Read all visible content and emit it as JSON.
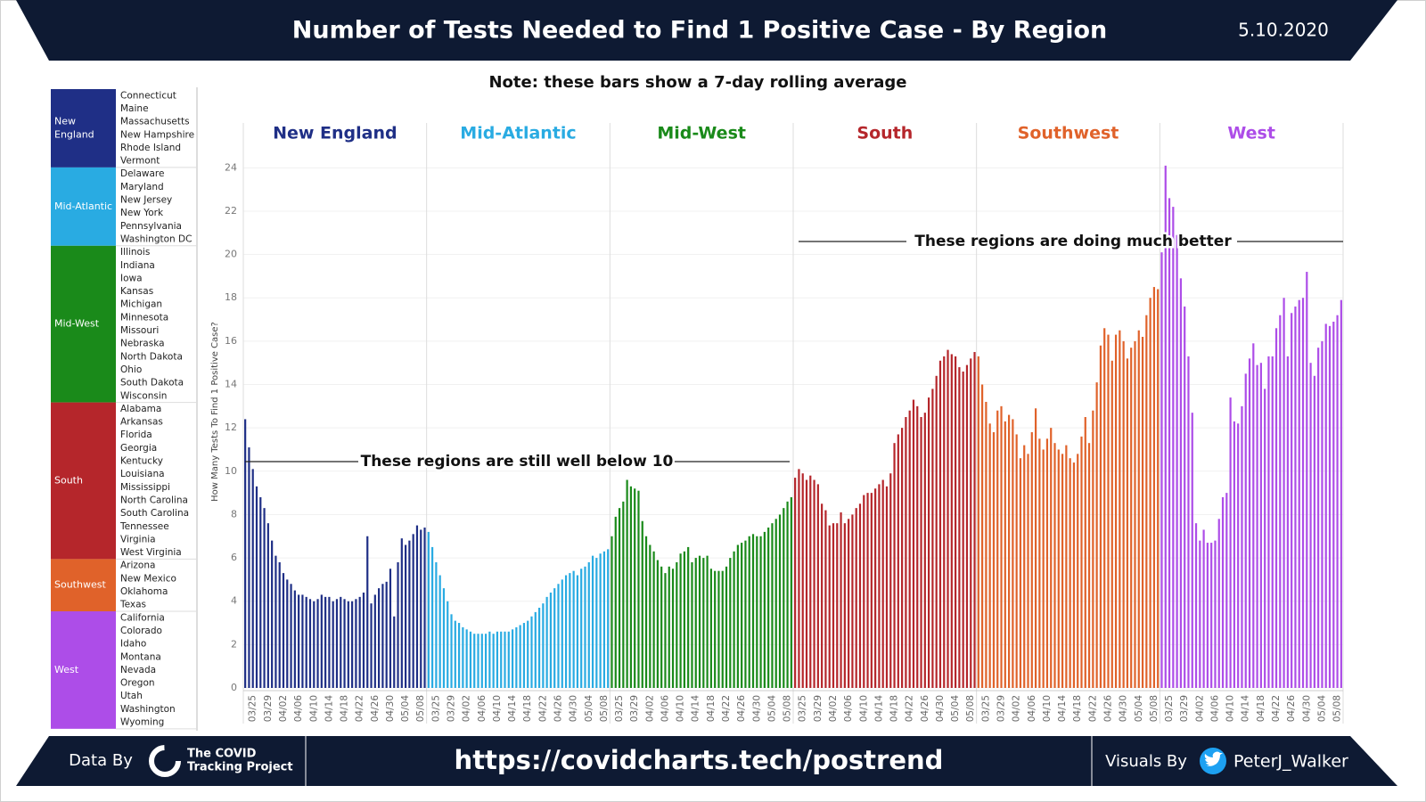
{
  "chart_data": {
    "type": "bar",
    "title": "Number of Tests Needed to Find 1 Positive Case - By Region",
    "date": "5.10.2020",
    "note": "Note: these bars show a 7-day rolling average",
    "y_label": "How Many Tests To Find 1 Positive Case?",
    "ylim": [
      0,
      25
    ],
    "yticks": [
      0,
      2,
      4,
      6,
      8,
      10,
      12,
      14,
      16,
      18,
      20,
      22,
      24
    ],
    "grid": true,
    "categories": [
      null,
      null,
      "03/25",
      null,
      null,
      null,
      "03/29",
      null,
      null,
      null,
      "04/02",
      null,
      null,
      null,
      "04/06",
      null,
      null,
      null,
      "04/10",
      null,
      null,
      null,
      "04/14",
      null,
      null,
      null,
      "04/18",
      null,
      null,
      null,
      "04/22",
      null,
      null,
      null,
      "04/26",
      null,
      null,
      null,
      "04/30",
      null,
      null,
      null,
      "05/04",
      null,
      null,
      null,
      "05/08",
      null
    ],
    "series": [
      {
        "name": "New England",
        "color": "#1f2f86",
        "values": [
          12.4,
          11.1,
          10.1,
          9.3,
          8.8,
          8.3,
          7.6,
          6.8,
          6.1,
          5.8,
          5.3,
          5.0,
          4.8,
          4.5,
          4.3,
          4.3,
          4.2,
          4.1,
          4.0,
          4.1,
          4.3,
          4.2,
          4.2,
          4.0,
          4.1,
          4.2,
          4.1,
          4.0,
          4.0,
          4.1,
          4.2,
          4.4,
          7.0,
          3.9,
          4.3,
          4.6,
          4.8,
          4.9,
          5.5,
          3.3,
          5.8,
          6.9,
          6.6,
          6.8,
          7.1,
          7.5,
          7.3,
          7.4
        ]
      },
      {
        "name": "Mid-Atlantic",
        "color": "#29abe2",
        "values": [
          7.2,
          6.5,
          5.8,
          5.2,
          4.6,
          4.0,
          3.4,
          3.1,
          3.0,
          2.8,
          2.7,
          2.6,
          2.5,
          2.5,
          2.5,
          2.5,
          2.6,
          2.5,
          2.6,
          2.6,
          2.6,
          2.6,
          2.7,
          2.8,
          2.9,
          3.0,
          3.1,
          3.3,
          3.5,
          3.7,
          3.9,
          4.2,
          4.4,
          4.6,
          4.8,
          5.0,
          5.2,
          5.3,
          5.4,
          5.2,
          5.5,
          5.6,
          5.8,
          6.1,
          6.0,
          6.2,
          6.3,
          6.4
        ]
      },
      {
        "name": "Mid-West",
        "color": "#1a8a1a",
        "values": [
          7.0,
          7.9,
          8.3,
          8.6,
          9.6,
          9.3,
          9.2,
          9.1,
          7.7,
          7.0,
          6.6,
          6.3,
          5.9,
          5.6,
          5.3,
          5.6,
          5.5,
          5.8,
          6.2,
          6.3,
          6.5,
          5.8,
          6.0,
          6.1,
          6.0,
          6.1,
          5.5,
          5.4,
          5.4,
          5.4,
          5.6,
          6.0,
          6.3,
          6.6,
          6.7,
          6.8,
          7.0,
          7.1,
          7.0,
          7.0,
          7.2,
          7.4,
          7.6,
          7.8,
          8.0,
          8.3,
          8.6,
          8.8
        ]
      },
      {
        "name": "South",
        "color": "#b5262b",
        "values": [
          9.7,
          10.1,
          9.9,
          9.6,
          9.8,
          9.6,
          9.4,
          8.5,
          8.2,
          7.5,
          7.6,
          7.6,
          8.1,
          7.6,
          7.8,
          8.0,
          8.3,
          8.5,
          8.9,
          9.0,
          9.0,
          9.2,
          9.4,
          9.6,
          9.3,
          9.9,
          11.3,
          11.7,
          12.0,
          12.5,
          12.8,
          13.3,
          13.0,
          12.5,
          12.7,
          13.4,
          13.8,
          14.4,
          15.1,
          15.3,
          15.6,
          15.4,
          15.3,
          14.8,
          14.6,
          14.9,
          15.2,
          15.5
        ]
      },
      {
        "name": "Southwest",
        "color": "#e0622a",
        "values": [
          15.3,
          14.0,
          13.2,
          12.2,
          11.8,
          12.8,
          13.0,
          12.3,
          12.6,
          12.4,
          11.7,
          10.6,
          11.2,
          10.8,
          11.8,
          12.9,
          11.5,
          11.0,
          11.5,
          12.0,
          11.3,
          11.0,
          10.8,
          11.2,
          10.6,
          10.4,
          10.8,
          11.6,
          12.5,
          11.3,
          12.8,
          14.1,
          15.8,
          16.6,
          16.3,
          15.1,
          16.3,
          16.5,
          16.0,
          15.2,
          15.7,
          16.0,
          16.5,
          16.2,
          17.2,
          18.0,
          18.5,
          18.4
        ]
      },
      {
        "name": "West",
        "color": "#ad4de8",
        "values": [
          20.1,
          24.1,
          22.6,
          22.2,
          20.9,
          18.9,
          17.6,
          15.3,
          12.7,
          7.6,
          6.8,
          7.3,
          6.7,
          6.7,
          6.8,
          7.8,
          8.8,
          9.0,
          13.4,
          12.3,
          12.2,
          13.0,
          14.5,
          15.2,
          15.9,
          14.9,
          15.0,
          13.8,
          15.3,
          15.3,
          16.6,
          17.2,
          18.0,
          15.3,
          17.3,
          17.6,
          17.9,
          18.0,
          19.2,
          15.0,
          14.4,
          15.7,
          16.0,
          16.8,
          16.7,
          16.9,
          17.2,
          17.9
        ]
      }
    ],
    "annotations": [
      "These regions are still well below 10",
      "These regions are doing much better"
    ]
  },
  "region_list": [
    {
      "region": "New England",
      "region_lines": [
        "New",
        "England"
      ],
      "states": [
        "Connecticut",
        "Maine",
        "Massachusetts",
        "New Hampshire",
        "Rhode Island",
        "Vermont"
      ]
    },
    {
      "region": "Mid-Atlantic",
      "region_lines": [
        "Mid-Atlantic"
      ],
      "states": [
        "Delaware",
        "Maryland",
        "New Jersey",
        "New York",
        "Pennsylvania",
        "Washington DC"
      ]
    },
    {
      "region": "Mid-West",
      "region_lines": [
        "Mid-West"
      ],
      "states": [
        "Illinois",
        "Indiana",
        "Iowa",
        "Kansas",
        "Michigan",
        "Minnesota",
        "Missouri",
        "Nebraska",
        "North Dakota",
        "Ohio",
        "South Dakota",
        "Wisconsin"
      ]
    },
    {
      "region": "South",
      "region_lines": [
        "South"
      ],
      "states": [
        "Alabama",
        "Arkansas",
        "Florida",
        "Georgia",
        "Kentucky",
        "Louisiana",
        "Mississippi",
        "North Carolina",
        "South Carolina",
        "Tennessee",
        "Virginia",
        "West Virginia"
      ]
    },
    {
      "region": "Southwest",
      "region_lines": [
        "Southwest"
      ],
      "states": [
        "Arizona",
        "New Mexico",
        "Oklahoma",
        "Texas"
      ]
    },
    {
      "region": "West",
      "region_lines": [
        "West"
      ],
      "states": [
        "California",
        "Colorado",
        "Idaho",
        "Montana",
        "Nevada",
        "Oregon",
        "Utah",
        "Washington",
        "Wyoming"
      ]
    }
  ],
  "footer": {
    "data_by": "Data By",
    "source_lines": [
      "The COVID",
      "Tracking Project"
    ],
    "url": "https://covidcharts.tech/postrend",
    "visuals_by": "Visuals By",
    "author": "PeterJ_Walker"
  }
}
